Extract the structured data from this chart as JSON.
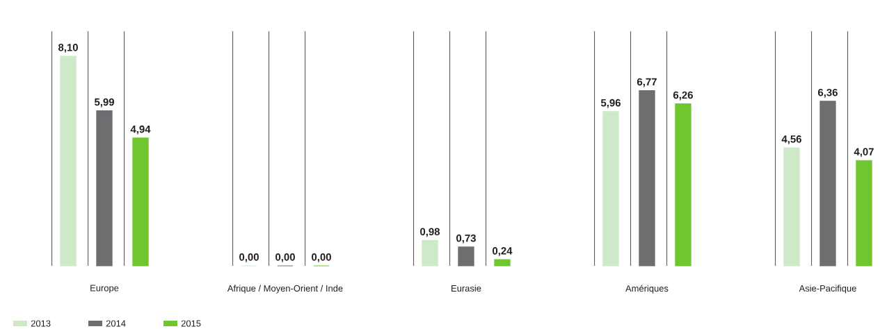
{
  "chart_data": {
    "type": "bar",
    "categories": [
      "Europe",
      "Afrique / Moyen-Orient / Inde",
      "Eurasie",
      "Amériques",
      "Asie-Pacifique"
    ],
    "series": [
      {
        "name": "2013",
        "color": "#cde9c8",
        "values": [
          8.1,
          0.0,
          0.98,
          5.96,
          4.56
        ],
        "value_labels": [
          "8,10",
          "0,00",
          "0,98",
          "5,96",
          "4,56"
        ]
      },
      {
        "name": "2014",
        "color": "#6d6e70",
        "values": [
          5.99,
          0.0,
          0.73,
          6.77,
          6.36
        ],
        "value_labels": [
          "5,99",
          "0,00",
          "0,73",
          "6,77",
          "6,36"
        ]
      },
      {
        "name": "2015",
        "color": "#6fc62f",
        "values": [
          4.94,
          0.0,
          0.24,
          6.26,
          4.07
        ],
        "value_labels": [
          "4,94",
          "0,00",
          "0,24",
          "6,26",
          "4,07"
        ]
      }
    ],
    "legend": "bottom left"
  }
}
